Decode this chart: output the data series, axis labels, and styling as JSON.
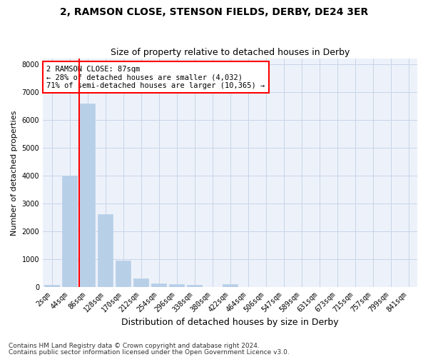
{
  "title1": "2, RAMSON CLOSE, STENSON FIELDS, DERBY, DE24 3ER",
  "title2": "Size of property relative to detached houses in Derby",
  "xlabel": "Distribution of detached houses by size in Derby",
  "ylabel": "Number of detached properties",
  "bar_labels": [
    "2sqm",
    "44sqm",
    "86sqm",
    "128sqm",
    "170sqm",
    "212sqm",
    "254sqm",
    "296sqm",
    "338sqm",
    "380sqm",
    "422sqm",
    "464sqm",
    "506sqm",
    "547sqm",
    "589sqm",
    "631sqm",
    "673sqm",
    "715sqm",
    "757sqm",
    "799sqm",
    "841sqm"
  ],
  "bar_values": [
    80,
    4000,
    6600,
    2620,
    960,
    310,
    120,
    100,
    80,
    0,
    100,
    0,
    0,
    0,
    0,
    0,
    0,
    0,
    0,
    0,
    0
  ],
  "bar_color": "#b8cfe8",
  "bar_edge_color": "#b8cfe8",
  "grid_color": "#c8d4e8",
  "background_color": "#edf2fa",
  "vline_color": "red",
  "vline_pos": 1.55,
  "annotation_box_text": "2 RAMSON CLOSE: 87sqm\n← 28% of detached houses are smaller (4,032)\n71% of semi-detached houses are larger (10,365) →",
  "ylim": [
    0,
    8200
  ],
  "yticks": [
    0,
    1000,
    2000,
    3000,
    4000,
    5000,
    6000,
    7000,
    8000
  ],
  "footer1": "Contains HM Land Registry data © Crown copyright and database right 2024.",
  "footer2": "Contains public sector information licensed under the Open Government Licence v3.0.",
  "title1_fontsize": 10,
  "title2_fontsize": 9,
  "xlabel_fontsize": 9,
  "ylabel_fontsize": 8,
  "tick_fontsize": 7,
  "annot_fontsize": 7.5,
  "footer_fontsize": 6.5
}
